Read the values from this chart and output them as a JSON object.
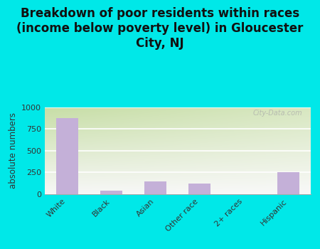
{
  "categories": [
    "White",
    "Black",
    "Asian",
    "Other race",
    "2+ races",
    "Hispanic"
  ],
  "values": [
    870,
    40,
    150,
    125,
    0,
    255
  ],
  "bar_color": "#c4b0d8",
  "title": "Breakdown of poor residents within races\n(income below poverty level) in Gloucester\nCity, NJ",
  "ylabel": "absolute numbers",
  "ylim": [
    0,
    1000
  ],
  "yticks": [
    0,
    250,
    500,
    750,
    1000
  ],
  "background_outer": "#00e8e8",
  "background_inner_top_left": "#c8dda8",
  "background_inner_top_right": "#e8f0d0",
  "background_inner_bottom": "#f8f8f8",
  "title_fontsize": 12,
  "watermark": "City-Data.com"
}
